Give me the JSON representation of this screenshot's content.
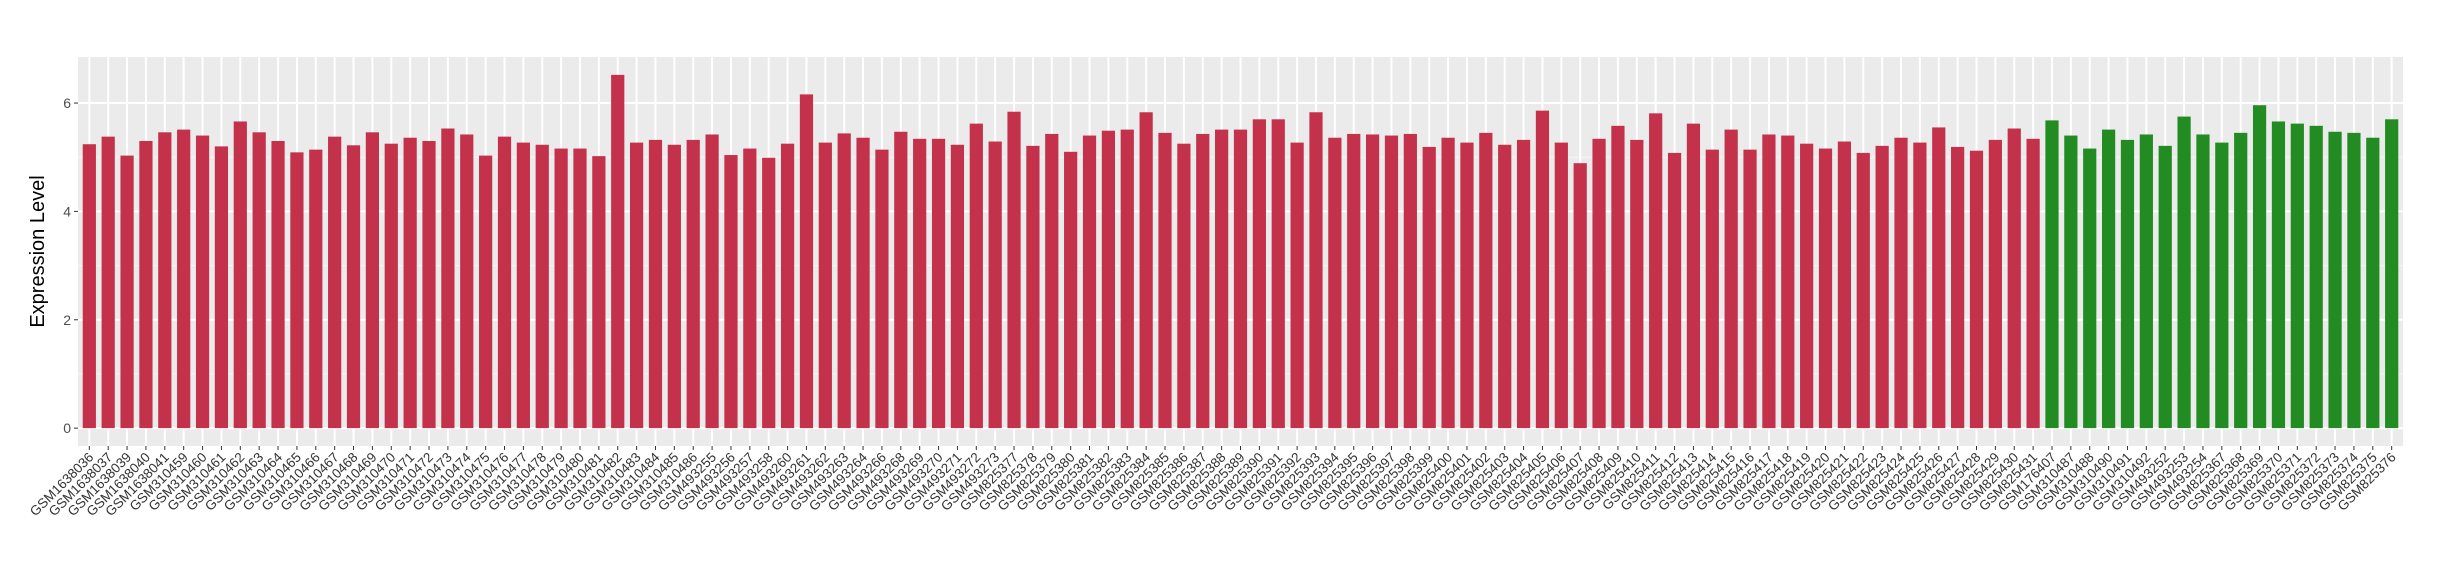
{
  "chart_data": {
    "type": "bar",
    "title": "",
    "xlabel": "",
    "ylabel": "Expression Level",
    "ylim": [
      -0.33,
      6.85
    ],
    "yticks": [
      0,
      2,
      4,
      6
    ],
    "grid": true,
    "legend": "none",
    "colors": {
      "red_group": "#C3314A",
      "green_group": "#228B22",
      "panel": "#EBEBEB",
      "grid": "#FFFFFF"
    },
    "categories": [
      "GSM1638036",
      "GSM1638037",
      "GSM1638039",
      "GSM1638040",
      "GSM1638041",
      "GSM310459",
      "GSM310460",
      "GSM310461",
      "GSM310462",
      "GSM310463",
      "GSM310464",
      "GSM310465",
      "GSM310466",
      "GSM310467",
      "GSM310468",
      "GSM310469",
      "GSM310470",
      "GSM310471",
      "GSM310472",
      "GSM310473",
      "GSM310474",
      "GSM310475",
      "GSM310476",
      "GSM310477",
      "GSM310478",
      "GSM310479",
      "GSM310480",
      "GSM310481",
      "GSM310482",
      "GSM310483",
      "GSM310484",
      "GSM310485",
      "GSM310486",
      "GSM493255",
      "GSM493256",
      "GSM493257",
      "GSM493258",
      "GSM493260",
      "GSM493261",
      "GSM493262",
      "GSM493263",
      "GSM493264",
      "GSM493266",
      "GSM493268",
      "GSM493269",
      "GSM493270",
      "GSM493271",
      "GSM493272",
      "GSM493273",
      "GSM825377",
      "GSM825378",
      "GSM825379",
      "GSM825380",
      "GSM825381",
      "GSM825382",
      "GSM825383",
      "GSM825384",
      "GSM825385",
      "GSM825386",
      "GSM825387",
      "GSM825388",
      "GSM825389",
      "GSM825390",
      "GSM825391",
      "GSM825392",
      "GSM825393",
      "GSM825394",
      "GSM825395",
      "GSM825396",
      "GSM825397",
      "GSM825398",
      "GSM825399",
      "GSM825400",
      "GSM825401",
      "GSM825402",
      "GSM825403",
      "GSM825404",
      "GSM825405",
      "GSM825406",
      "GSM825407",
      "GSM825408",
      "GSM825409",
      "GSM825410",
      "GSM825411",
      "GSM825412",
      "GSM825413",
      "GSM825414",
      "GSM825415",
      "GSM825416",
      "GSM825417",
      "GSM825418",
      "GSM825419",
      "GSM825420",
      "GSM825421",
      "GSM825422",
      "GSM825423",
      "GSM825424",
      "GSM825425",
      "GSM825426",
      "GSM825427",
      "GSM825428",
      "GSM825429",
      "GSM825430",
      "GSM825431",
      "GSM176407",
      "GSM310487",
      "GSM310488",
      "GSM310490",
      "GSM310491",
      "GSM310492",
      "GSM493252",
      "GSM493253",
      "GSM493254",
      "GSM825367",
      "GSM825368",
      "GSM825369",
      "GSM825370",
      "GSM825371",
      "GSM825372",
      "GSM825373",
      "GSM825374",
      "GSM825375",
      "GSM825376"
    ],
    "values": [
      5.24,
      5.38,
      5.03,
      5.3,
      5.46,
      5.51,
      5.4,
      5.2,
      5.66,
      5.46,
      5.3,
      5.09,
      5.14,
      5.38,
      5.22,
      5.46,
      5.25,
      5.36,
      5.3,
      5.53,
      5.42,
      5.03,
      5.38,
      5.27,
      5.23,
      5.16,
      5.16,
      5.02,
      6.52,
      5.27,
      5.32,
      5.23,
      5.32,
      5.42,
      5.04,
      5.16,
      4.99,
      5.25,
      6.16,
      5.27,
      5.44,
      5.36,
      5.14,
      5.47,
      5.34,
      5.34,
      5.23,
      5.62,
      5.29,
      5.84,
      5.21,
      5.43,
      5.1,
      5.4,
      5.49,
      5.51,
      5.83,
      5.45,
      5.25,
      5.43,
      5.51,
      5.51,
      5.7,
      5.7,
      5.27,
      5.83,
      5.36,
      5.43,
      5.42,
      5.4,
      5.43,
      5.19,
      5.36,
      5.27,
      5.45,
      5.23,
      5.32,
      5.86,
      5.27,
      4.89,
      5.34,
      5.58,
      5.32,
      5.81,
      5.08,
      5.62,
      5.14,
      5.51,
      5.14,
      5.42,
      5.4,
      5.25,
      5.16,
      5.29,
      5.08,
      5.21,
      5.36,
      5.27,
      5.55,
      5.19,
      5.12,
      5.32,
      5.53,
      5.34,
      5.68,
      5.4,
      5.16,
      5.51,
      5.32,
      5.42,
      5.21,
      5.75,
      5.42,
      5.27,
      5.45,
      5.96,
      5.66,
      5.62,
      5.58,
      5.47,
      5.45,
      5.36,
      5.7
    ],
    "group_counts": {
      "red_group": 104,
      "green_group": 19
    }
  }
}
